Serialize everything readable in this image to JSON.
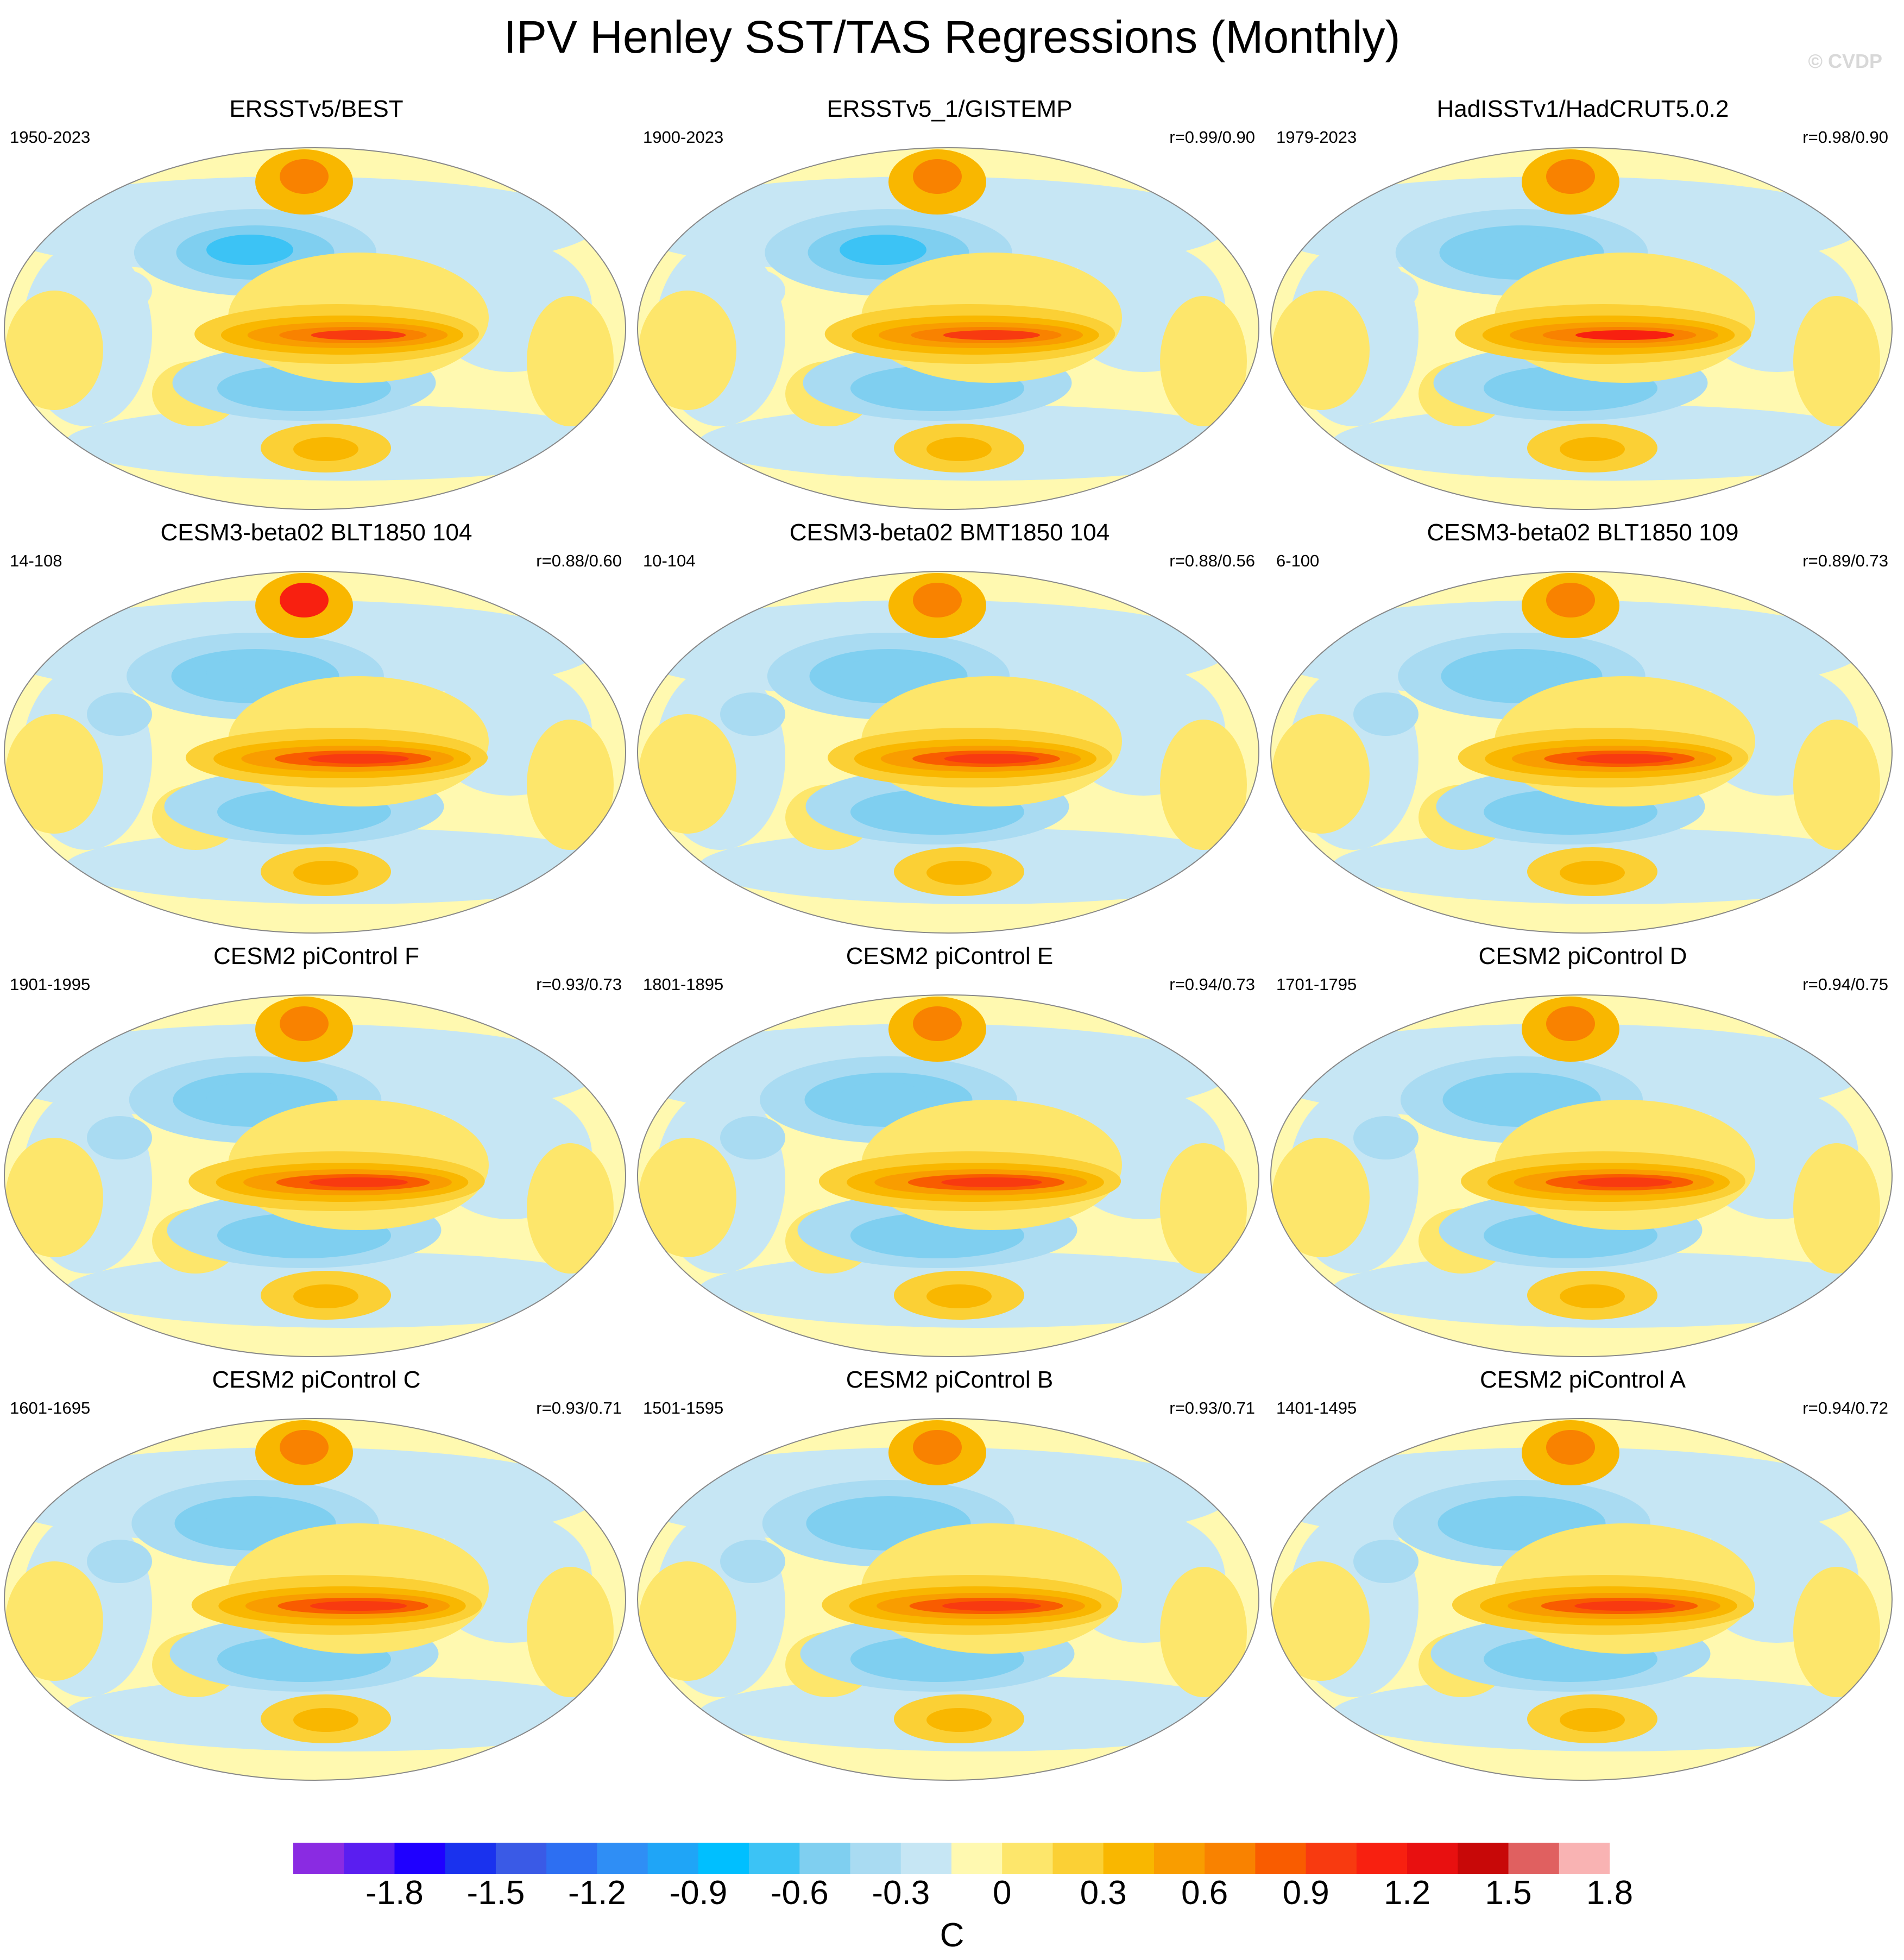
{
  "figure": {
    "title": "IPV Henley SST/TAS Regressions (Monthly)",
    "watermark": "© CVDP"
  },
  "panels": [
    {
      "title": "ERSSTv5/BEST",
      "years": "1950-2023",
      "corr": "",
      "variant": 0
    },
    {
      "title": "ERSSTv5_1/GISTEMP",
      "years": "1900-2023",
      "corr": "r=0.99/0.90",
      "variant": 1
    },
    {
      "title": "HadISSTv1/HadCRUT5.0.2",
      "years": "1979-2023",
      "corr": "r=0.98/0.90",
      "variant": 2
    },
    {
      "title": "CESM3-beta02 BLT1850 104",
      "years": "14-108",
      "corr": "r=0.88/0.60",
      "variant": 3
    },
    {
      "title": "CESM3-beta02 BMT1850 104",
      "years": "10-104",
      "corr": "r=0.88/0.56",
      "variant": 4
    },
    {
      "title": "CESM3-beta02 BLT1850 109",
      "years": "6-100",
      "corr": "r=0.89/0.73",
      "variant": 5
    },
    {
      "title": "CESM2 piControl F",
      "years": "1901-1995",
      "corr": "r=0.93/0.73",
      "variant": 6
    },
    {
      "title": "CESM2 piControl E",
      "years": "1801-1895",
      "corr": "r=0.94/0.73",
      "variant": 7
    },
    {
      "title": "CESM2 piControl D",
      "years": "1701-1795",
      "corr": "r=0.94/0.75",
      "variant": 8
    },
    {
      "title": "CESM2 piControl C",
      "years": "1601-1695",
      "corr": "r=0.93/0.71",
      "variant": 9
    },
    {
      "title": "CESM2 piControl B",
      "years": "1501-1595",
      "corr": "r=0.93/0.71",
      "variant": 10
    },
    {
      "title": "CESM2 piControl A",
      "years": "1401-1495",
      "corr": "r=0.94/0.72",
      "variant": 11
    }
  ],
  "colorbar": {
    "unit": "C",
    "colors": [
      "#8a2be2",
      "#5a1ef0",
      "#1f00ff",
      "#1a32ee",
      "#3a5ae6",
      "#2d6ff2",
      "#2f8ef5",
      "#1fa5f7",
      "#00bfff",
      "#3cc3f5",
      "#7fcff0",
      "#a9dbf2",
      "#c6e6f4",
      "#fff9b0",
      "#fde66b",
      "#fbd035",
      "#f9b700",
      "#f99d00",
      "#f98200",
      "#f95c00",
      "#f83a10",
      "#f82010",
      "#e81010",
      "#c80808",
      "#e06060",
      "#f9b3b3"
    ],
    "tick_labels": [
      "-1.8",
      "-1.5",
      "-1.2",
      "-0.9",
      "-0.6",
      "-0.3",
      "0",
      "0.3",
      "0.6",
      "0.9",
      "1.2",
      "1.5",
      "1.8"
    ]
  }
}
